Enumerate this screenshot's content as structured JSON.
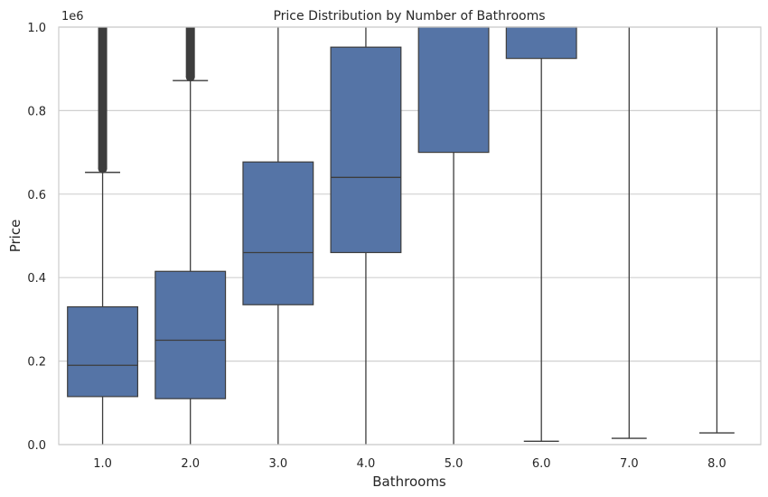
{
  "chart_data": {
    "type": "box",
    "title": "Price Distribution by Number of Bathrooms",
    "xlabel": "Bathrooms",
    "ylabel": "Price",
    "y_offset_label": "1e6",
    "ylim": [
      0,
      1000000
    ],
    "y_ticks": [
      0,
      200000,
      400000,
      600000,
      800000,
      1000000
    ],
    "y_tick_labels": [
      "0.0",
      "0.2",
      "0.4",
      "0.6",
      "0.8",
      "1.0"
    ],
    "grid": "horizontal",
    "categories": [
      "1.0",
      "2.0",
      "3.0",
      "4.0",
      "5.0",
      "6.0",
      "7.0",
      "8.0"
    ],
    "colors": {
      "box": "#5574a6",
      "line": "#3d3d3d",
      "grid": "#d0d0d0",
      "outlier": "#3d3d3d",
      "frame": "#cccccc"
    },
    "boxes": [
      {
        "category": "1.0",
        "whisker_low": 0,
        "q1": 115000,
        "median": 190000,
        "q3": 330000,
        "whisker_high": 652000,
        "outliers_from": 652000,
        "outliers_to": 1000000
      },
      {
        "category": "2.0",
        "whisker_low": 0,
        "q1": 110000,
        "median": 250000,
        "q3": 415000,
        "whisker_high": 872000,
        "outliers_from": 872000,
        "outliers_to": 1000000
      },
      {
        "category": "3.0",
        "whisker_low": 0,
        "q1": 335000,
        "median": 460000,
        "q3": 677000,
        "whisker_high": 1000000
      },
      {
        "category": "4.0",
        "whisker_low": 0,
        "q1": 460000,
        "median": 640000,
        "q3": 952000,
        "whisker_high": 1000000
      },
      {
        "category": "5.0",
        "whisker_low": 0,
        "q1": 700000,
        "median": 1000000,
        "q3": 1000000,
        "whisker_high": 1000000
      },
      {
        "category": "6.0",
        "whisker_low": 8000,
        "q1": 925000,
        "median": 1000000,
        "q3": 1000000,
        "whisker_high": 1000000
      },
      {
        "category": "7.0",
        "whisker_low": 15000,
        "q1": 1000000,
        "median": 1000000,
        "q3": 1000000,
        "whisker_high": 1000000
      },
      {
        "category": "8.0",
        "whisker_low": 28000,
        "q1": 1000000,
        "median": 1000000,
        "q3": 1000000,
        "whisker_high": 1000000
      }
    ]
  }
}
